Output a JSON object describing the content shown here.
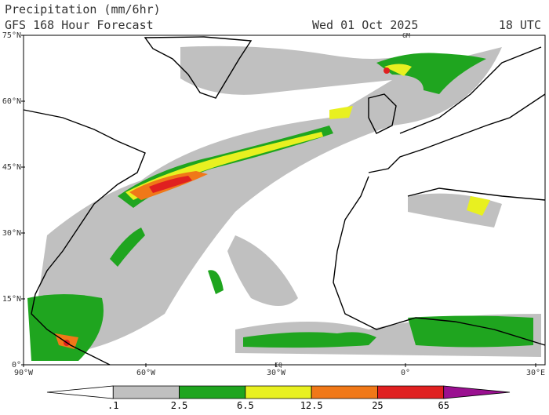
{
  "header": {
    "title": "Precipitation (mm/6hr)",
    "subtitle": "GFS 168 Hour Forecast",
    "date": "Wed 01 Oct 2025",
    "time": "18 UTC"
  },
  "map": {
    "lat_labels": [
      "75°N",
      "60°N",
      "45°N",
      "30°N",
      "15°N",
      "0°"
    ],
    "lon_labels": [
      "90°W",
      "60°W",
      "30°W",
      "0°",
      "30°E"
    ],
    "markers": [
      "GM",
      "EQ"
    ]
  },
  "colorbar": {
    "labels": [
      ".1",
      "2.5",
      "6.5",
      "12.5",
      "25",
      "65"
    ],
    "colors": [
      "#ffffff",
      "#c0c0c0",
      "#1fa51f",
      "#e8f020",
      "#f07818",
      "#e02020",
      "#9a1090"
    ]
  }
}
